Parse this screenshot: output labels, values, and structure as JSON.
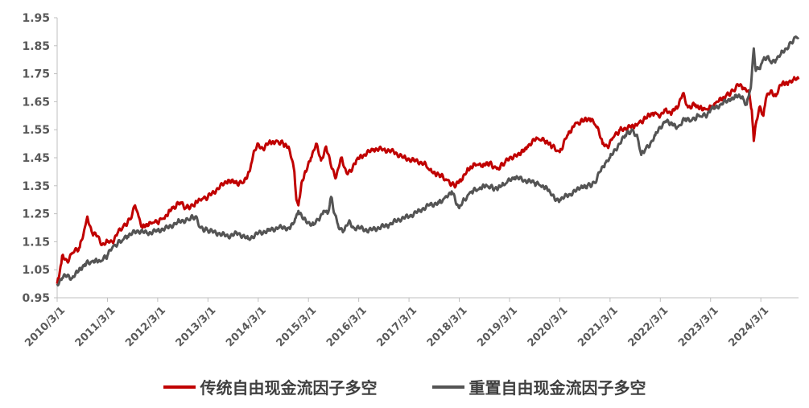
{
  "chart_data": {
    "type": "line",
    "title": "",
    "xlabel": "",
    "ylabel": "",
    "ylim": [
      0.95,
      1.95
    ],
    "y_ticks": [
      "0.95",
      "1.05",
      "1.15",
      "1.25",
      "1.35",
      "1.45",
      "1.55",
      "1.65",
      "1.75",
      "1.85",
      "1.95"
    ],
    "x_ticks": [
      "2010/3/1",
      "2011/3/1",
      "2012/3/1",
      "2013/3/1",
      "2014/3/1",
      "2015/3/1",
      "2016/3/1",
      "2017/3/1",
      "2018/3/1",
      "2019/3/1",
      "2020/3/1",
      "2021/3/1",
      "2022/3/1",
      "2023/3/1",
      "2024/3/1"
    ],
    "x_range": [
      2010.0,
      2024.75
    ],
    "grid": false,
    "legend_position": "bottom",
    "series": [
      {
        "name": "传统自由现金流因子多空",
        "color": "#c00000",
        "points": [
          [
            2010.0,
            1.0
          ],
          [
            2010.05,
            1.04
          ],
          [
            2010.1,
            1.1
          ],
          [
            2010.2,
            1.08
          ],
          [
            2010.3,
            1.11
          ],
          [
            2010.45,
            1.13
          ],
          [
            2010.55,
            1.2
          ],
          [
            2010.6,
            1.24
          ],
          [
            2010.7,
            1.18
          ],
          [
            2010.8,
            1.17
          ],
          [
            2010.9,
            1.14
          ],
          [
            2011.0,
            1.15
          ],
          [
            2011.1,
            1.15
          ],
          [
            2011.2,
            1.18
          ],
          [
            2011.3,
            1.2
          ],
          [
            2011.45,
            1.23
          ],
          [
            2011.55,
            1.28
          ],
          [
            2011.62,
            1.24
          ],
          [
            2011.7,
            1.2
          ],
          [
            2011.85,
            1.22
          ],
          [
            2012.0,
            1.22
          ],
          [
            2012.15,
            1.24
          ],
          [
            2012.3,
            1.27
          ],
          [
            2012.45,
            1.29
          ],
          [
            2012.55,
            1.27
          ],
          [
            2012.7,
            1.28
          ],
          [
            2012.85,
            1.3
          ],
          [
            2013.0,
            1.31
          ],
          [
            2013.2,
            1.34
          ],
          [
            2013.4,
            1.37
          ],
          [
            2013.55,
            1.36
          ],
          [
            2013.7,
            1.36
          ],
          [
            2013.82,
            1.4
          ],
          [
            2013.9,
            1.46
          ],
          [
            2014.0,
            1.5
          ],
          [
            2014.1,
            1.48
          ],
          [
            2014.2,
            1.5
          ],
          [
            2014.35,
            1.51
          ],
          [
            2014.5,
            1.5
          ],
          [
            2014.62,
            1.48
          ],
          [
            2014.72,
            1.4
          ],
          [
            2014.76,
            1.3
          ],
          [
            2014.8,
            1.28
          ],
          [
            2014.86,
            1.36
          ],
          [
            2014.95,
            1.4
          ],
          [
            2015.05,
            1.45
          ],
          [
            2015.15,
            1.5
          ],
          [
            2015.25,
            1.44
          ],
          [
            2015.35,
            1.49
          ],
          [
            2015.45,
            1.42
          ],
          [
            2015.55,
            1.38
          ],
          [
            2015.65,
            1.45
          ],
          [
            2015.75,
            1.4
          ],
          [
            2015.85,
            1.4
          ],
          [
            2015.95,
            1.44
          ],
          [
            2016.1,
            1.46
          ],
          [
            2016.3,
            1.48
          ],
          [
            2016.5,
            1.48
          ],
          [
            2016.7,
            1.47
          ],
          [
            2016.9,
            1.45
          ],
          [
            2017.1,
            1.44
          ],
          [
            2017.3,
            1.43
          ],
          [
            2017.45,
            1.4
          ],
          [
            2017.6,
            1.39
          ],
          [
            2017.75,
            1.37
          ],
          [
            2017.9,
            1.35
          ],
          [
            2018.05,
            1.37
          ],
          [
            2018.15,
            1.4
          ],
          [
            2018.3,
            1.43
          ],
          [
            2018.45,
            1.42
          ],
          [
            2018.6,
            1.43
          ],
          [
            2018.75,
            1.41
          ],
          [
            2018.9,
            1.43
          ],
          [
            2019.0,
            1.45
          ],
          [
            2019.2,
            1.46
          ],
          [
            2019.35,
            1.49
          ],
          [
            2019.55,
            1.52
          ],
          [
            2019.7,
            1.51
          ],
          [
            2019.85,
            1.49
          ],
          [
            2020.0,
            1.47
          ],
          [
            2020.15,
            1.53
          ],
          [
            2020.3,
            1.57
          ],
          [
            2020.45,
            1.58
          ],
          [
            2020.6,
            1.59
          ],
          [
            2020.75,
            1.56
          ],
          [
            2020.85,
            1.5
          ],
          [
            2020.95,
            1.49
          ],
          [
            2021.05,
            1.52
          ],
          [
            2021.2,
            1.55
          ],
          [
            2021.4,
            1.56
          ],
          [
            2021.55,
            1.57
          ],
          [
            2021.7,
            1.59
          ],
          [
            2021.85,
            1.61
          ],
          [
            2022.0,
            1.6
          ],
          [
            2022.1,
            1.62
          ],
          [
            2022.2,
            1.61
          ],
          [
            2022.35,
            1.63
          ],
          [
            2022.45,
            1.68
          ],
          [
            2022.55,
            1.63
          ],
          [
            2022.7,
            1.64
          ],
          [
            2022.85,
            1.62
          ],
          [
            2023.0,
            1.63
          ],
          [
            2023.15,
            1.65
          ],
          [
            2023.3,
            1.67
          ],
          [
            2023.45,
            1.69
          ],
          [
            2023.55,
            1.71
          ],
          [
            2023.65,
            1.7
          ],
          [
            2023.75,
            1.69
          ],
          [
            2023.82,
            1.62
          ],
          [
            2023.86,
            1.51
          ],
          [
            2023.9,
            1.57
          ],
          [
            2023.97,
            1.63
          ],
          [
            2024.05,
            1.6
          ],
          [
            2024.1,
            1.66
          ],
          [
            2024.2,
            1.69
          ],
          [
            2024.3,
            1.67
          ],
          [
            2024.4,
            1.71
          ],
          [
            2024.55,
            1.72
          ],
          [
            2024.65,
            1.73
          ],
          [
            2024.75,
            1.73
          ]
        ]
      },
      {
        "name": "重置自由现金流因子多空",
        "color": "#545454",
        "points": [
          [
            2010.0,
            1.0
          ],
          [
            2010.1,
            1.02
          ],
          [
            2010.2,
            1.03
          ],
          [
            2010.3,
            1.02
          ],
          [
            2010.4,
            1.04
          ],
          [
            2010.55,
            1.07
          ],
          [
            2010.7,
            1.08
          ],
          [
            2010.85,
            1.08
          ],
          [
            2011.0,
            1.1
          ],
          [
            2011.1,
            1.13
          ],
          [
            2011.25,
            1.15
          ],
          [
            2011.4,
            1.17
          ],
          [
            2011.6,
            1.19
          ],
          [
            2011.8,
            1.18
          ],
          [
            2012.0,
            1.19
          ],
          [
            2012.2,
            1.2
          ],
          [
            2012.4,
            1.22
          ],
          [
            2012.6,
            1.23
          ],
          [
            2012.75,
            1.24
          ],
          [
            2012.85,
            1.2
          ],
          [
            2013.0,
            1.19
          ],
          [
            2013.2,
            1.18
          ],
          [
            2013.4,
            1.17
          ],
          [
            2013.6,
            1.18
          ],
          [
            2013.8,
            1.16
          ],
          [
            2014.0,
            1.18
          ],
          [
            2014.2,
            1.19
          ],
          [
            2014.4,
            1.2
          ],
          [
            2014.6,
            1.2
          ],
          [
            2014.72,
            1.22
          ],
          [
            2014.8,
            1.26
          ],
          [
            2014.9,
            1.23
          ],
          [
            2015.0,
            1.22
          ],
          [
            2015.1,
            1.21
          ],
          [
            2015.2,
            1.23
          ],
          [
            2015.3,
            1.26
          ],
          [
            2015.38,
            1.25
          ],
          [
            2015.45,
            1.31
          ],
          [
            2015.52,
            1.25
          ],
          [
            2015.6,
            1.2
          ],
          [
            2015.7,
            1.19
          ],
          [
            2015.8,
            1.22
          ],
          [
            2015.9,
            1.2
          ],
          [
            2016.0,
            1.2
          ],
          [
            2016.2,
            1.19
          ],
          [
            2016.4,
            1.2
          ],
          [
            2016.6,
            1.21
          ],
          [
            2016.8,
            1.23
          ],
          [
            2017.0,
            1.24
          ],
          [
            2017.2,
            1.26
          ],
          [
            2017.4,
            1.28
          ],
          [
            2017.6,
            1.29
          ],
          [
            2017.75,
            1.31
          ],
          [
            2017.85,
            1.33
          ],
          [
            2017.92,
            1.3
          ],
          [
            2018.0,
            1.27
          ],
          [
            2018.1,
            1.3
          ],
          [
            2018.25,
            1.33
          ],
          [
            2018.4,
            1.34
          ],
          [
            2018.55,
            1.35
          ],
          [
            2018.7,
            1.34
          ],
          [
            2018.85,
            1.35
          ],
          [
            2019.0,
            1.37
          ],
          [
            2019.1,
            1.38
          ],
          [
            2019.3,
            1.37
          ],
          [
            2019.5,
            1.36
          ],
          [
            2019.65,
            1.35
          ],
          [
            2019.8,
            1.33
          ],
          [
            2019.9,
            1.3
          ],
          [
            2020.0,
            1.3
          ],
          [
            2020.2,
            1.32
          ],
          [
            2020.4,
            1.34
          ],
          [
            2020.55,
            1.35
          ],
          [
            2020.7,
            1.36
          ],
          [
            2020.8,
            1.4
          ],
          [
            2020.9,
            1.43
          ],
          [
            2021.0,
            1.45
          ],
          [
            2021.1,
            1.48
          ],
          [
            2021.2,
            1.5
          ],
          [
            2021.3,
            1.53
          ],
          [
            2021.45,
            1.55
          ],
          [
            2021.55,
            1.52
          ],
          [
            2021.62,
            1.46
          ],
          [
            2021.7,
            1.48
          ],
          [
            2021.8,
            1.5
          ],
          [
            2021.9,
            1.53
          ],
          [
            2022.0,
            1.56
          ],
          [
            2022.1,
            1.58
          ],
          [
            2022.2,
            1.57
          ],
          [
            2022.35,
            1.56
          ],
          [
            2022.5,
            1.59
          ],
          [
            2022.6,
            1.58
          ],
          [
            2022.75,
            1.6
          ],
          [
            2022.9,
            1.6
          ],
          [
            2023.0,
            1.62
          ],
          [
            2023.2,
            1.64
          ],
          [
            2023.4,
            1.66
          ],
          [
            2023.55,
            1.67
          ],
          [
            2023.65,
            1.66
          ],
          [
            2023.72,
            1.64
          ],
          [
            2023.8,
            1.7
          ],
          [
            2023.86,
            1.84
          ],
          [
            2023.9,
            1.76
          ],
          [
            2023.97,
            1.77
          ],
          [
            2024.05,
            1.8
          ],
          [
            2024.12,
            1.81
          ],
          [
            2024.2,
            1.79
          ],
          [
            2024.3,
            1.8
          ],
          [
            2024.4,
            1.82
          ],
          [
            2024.5,
            1.84
          ],
          [
            2024.6,
            1.86
          ],
          [
            2024.68,
            1.88
          ],
          [
            2024.75,
            1.88
          ]
        ]
      }
    ]
  }
}
